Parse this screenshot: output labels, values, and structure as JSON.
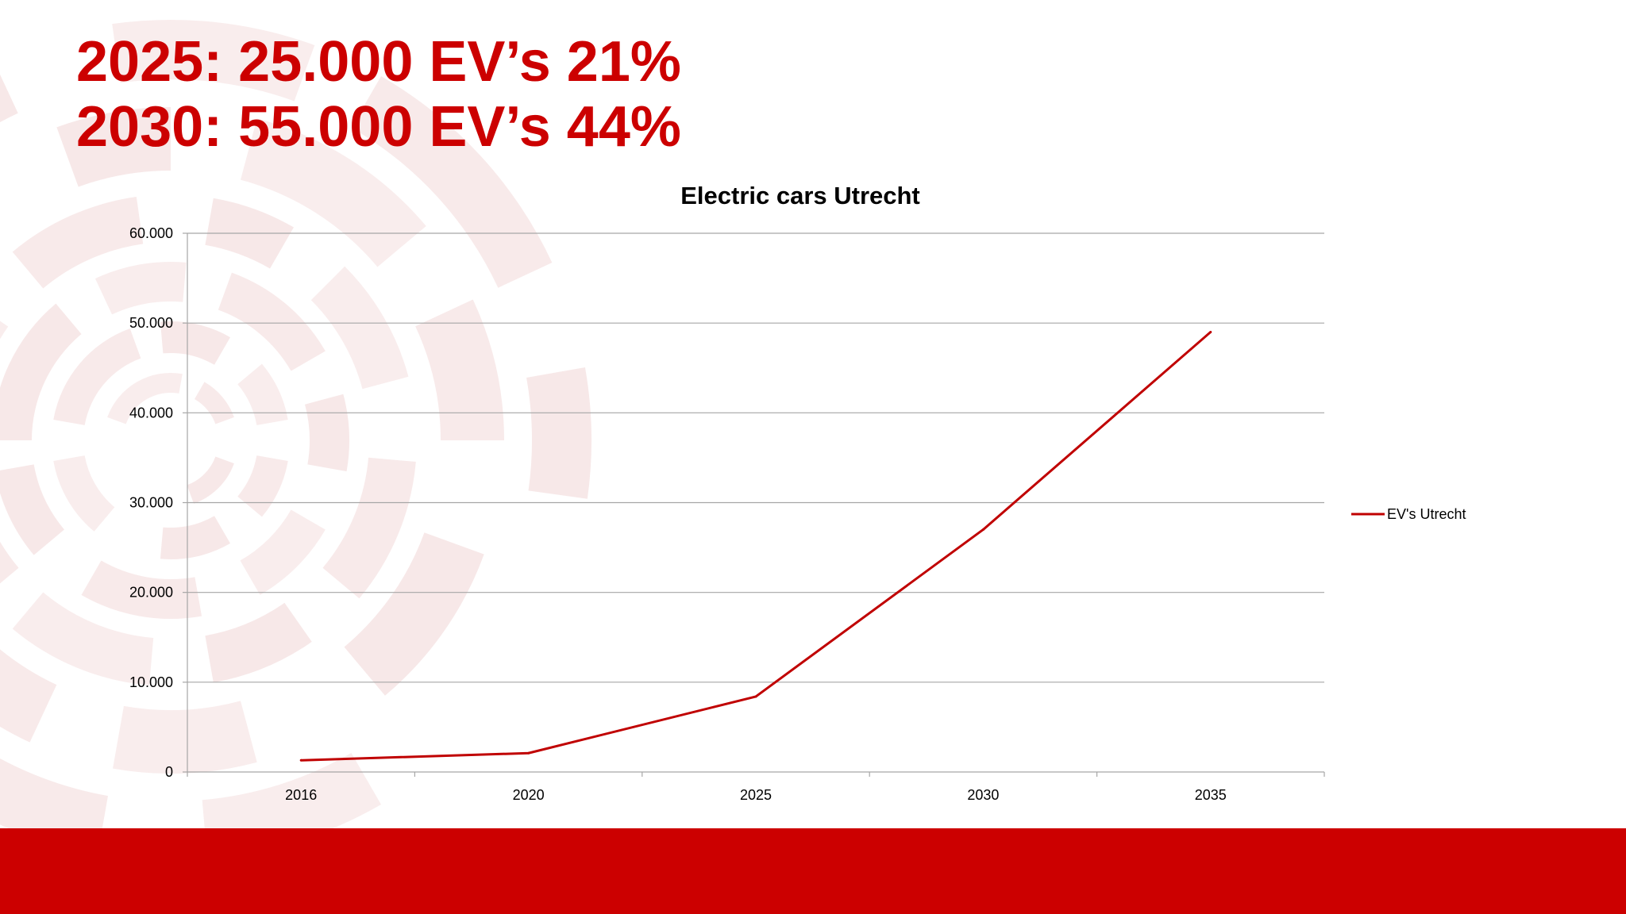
{
  "headlines": [
    "2025: 25.000 EV’s 21%",
    "2030: 55.000 EV’s 44%"
  ],
  "colors": {
    "accent": "#cc0000",
    "footer": "#cc0000",
    "series_line": "#c00000",
    "gridline": "#a6a6a6",
    "text": "#000000",
    "decoration": "#f4dede"
  },
  "chart_data": {
    "type": "line",
    "title": "Electric cars Utrecht",
    "xlabel": "",
    "ylabel": "",
    "categories": [
      "2016",
      "2020",
      "2025",
      "2030",
      "2035"
    ],
    "series": [
      {
        "name": "EV's Utrecht",
        "values": [
          1300,
          2100,
          8400,
          27000,
          49000
        ]
      }
    ],
    "ylim": [
      0,
      60000
    ],
    "yticks": [
      0,
      10000,
      20000,
      30000,
      40000,
      50000,
      60000
    ],
    "ytick_labels": [
      "0",
      "10.000",
      "20.000",
      "30.000",
      "40.000",
      "50.000",
      "60.000"
    ],
    "grid": true,
    "legend": "right"
  }
}
